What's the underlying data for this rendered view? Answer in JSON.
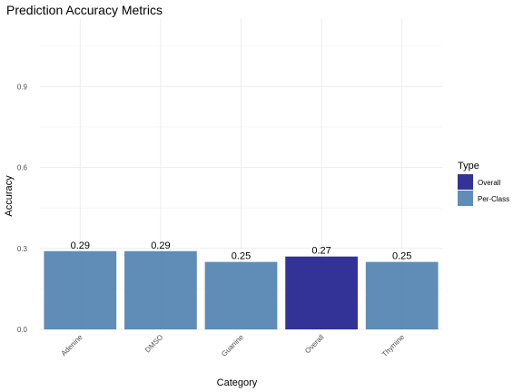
{
  "chart_data": {
    "type": "bar",
    "title": "Prediction Accuracy Metrics",
    "xlabel": "Category",
    "ylabel": "Accuracy",
    "categories": [
      "Adenine",
      "DMSO",
      "Guanine",
      "Overall",
      "Thymine"
    ],
    "values": [
      0.29,
      0.29,
      0.25,
      0.27,
      0.25
    ],
    "value_labels": [
      "0.29",
      "0.29",
      "0.25",
      "0.27",
      "0.25"
    ],
    "types": [
      "Per-Class",
      "Per-Class",
      "Per-Class",
      "Overall",
      "Per-Class"
    ],
    "ylim": [
      0,
      1.15
    ],
    "yticks": [
      0.0,
      0.3,
      0.6,
      0.9
    ],
    "ytick_labels": [
      "0.0",
      "0.3",
      "0.6",
      "0.9"
    ],
    "grid": true,
    "legend": {
      "title": "Type",
      "placement": "right",
      "entries": [
        {
          "label": "Overall",
          "color": "#1c1c8c"
        },
        {
          "label": "Per-Class",
          "color": "#4f7fb0"
        }
      ]
    },
    "colors": {
      "Overall": "#1c1c8c",
      "Per-Class": "#4f7fb0"
    }
  }
}
